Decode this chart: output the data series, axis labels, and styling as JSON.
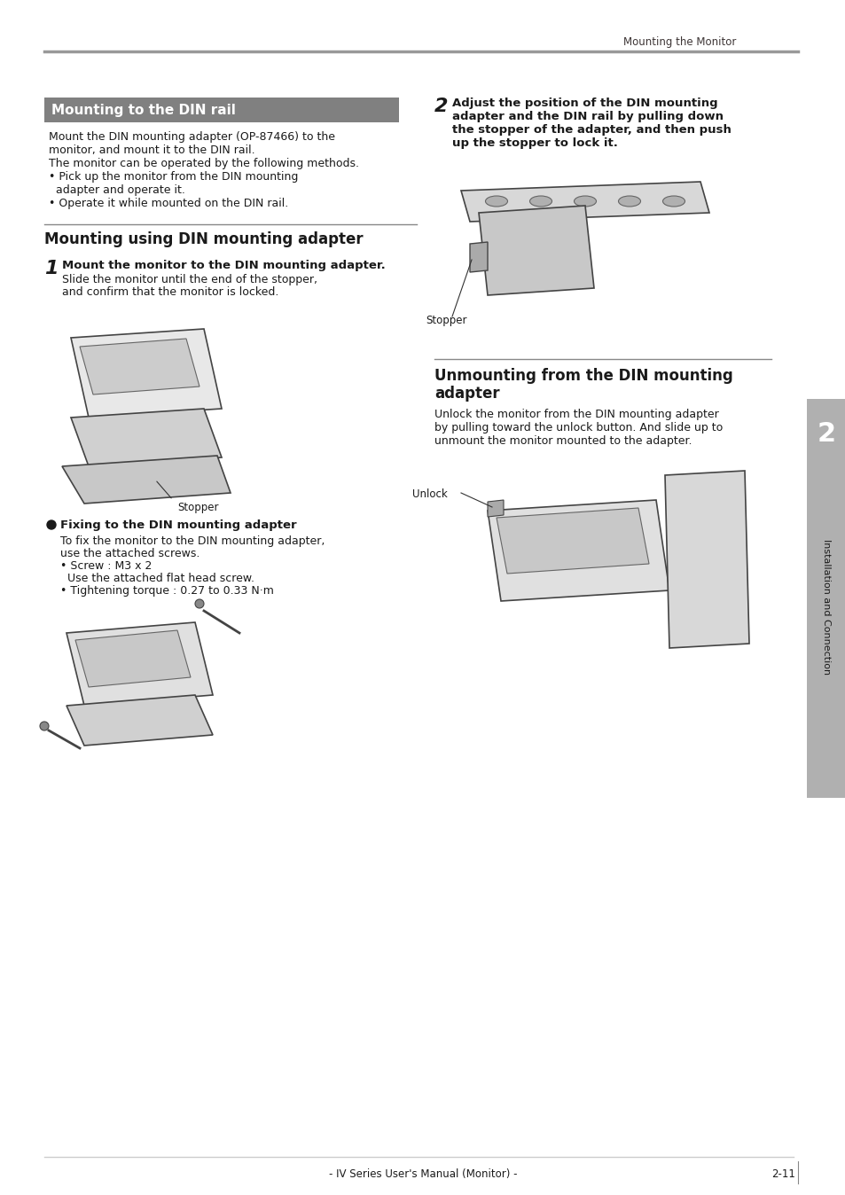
{
  "page_bg": "#ffffff",
  "header_text": "Mounting the Monitor",
  "header_text_color": "#3d3535",
  "header_line_color": "#999999",
  "section1_title": "Mounting to the DIN rail",
  "section1_title_bg": "#808080",
  "section1_title_color": "#ffffff",
  "section1_body": [
    "Mount the DIN mounting adapter (OP-87466) to the",
    "monitor, and mount it to the DIN rail.",
    "The monitor can be operated by the following methods.",
    "• Pick up the monitor from the DIN mounting",
    "  adapter and operate it.",
    "• Operate it while mounted on the DIN rail."
  ],
  "section2_title": "Mounting using DIN mounting adapter",
  "section2_line_color": "#555555",
  "step1_title": "Mount the monitor to the DIN mounting adapter.",
  "step1_body": [
    "Slide the monitor until the end of the stopper,",
    "and confirm that the monitor is locked."
  ],
  "step1_label": "Stopper",
  "step2_number": "2",
  "step2_title": "Adjust the position of the DIN mounting adapter and the DIN rail by pulling down the stopper of the adapter, and then push up the stopper to lock it.",
  "step2_label": "Stopper",
  "fixing_title": "Fixing to the DIN mounting adapter",
  "fixing_body": [
    "To fix the monitor to the DIN mounting adapter,",
    "use the attached screws.",
    "• Screw : M3 x 2",
    "  Use the attached flat head screw.",
    "• Tightening torque : 0.27 to 0.33 N·m"
  ],
  "section3_title": "Unmounting from the DIN mounting adapter",
  "section3_line_color": "#555555",
  "section3_body": [
    "Unlock the monitor from the DIN mounting adapter",
    "by pulling toward the unlock button. And slide up to",
    "unmount the monitor mounted to the adapter."
  ],
  "section3_label": "Unlock",
  "sidebar_text": "Installation and Connection",
  "sidebar_number": "2",
  "sidebar_bg": "#d0d0d0",
  "footer_center": "- IV Series User's Manual (Monitor) -",
  "footer_right": "2-11",
  "footer_line_color": "#cccccc",
  "text_color": "#1a1a1a",
  "body_fontsize": 9,
  "title_fontsize": 11,
  "step_num_fontsize": 16
}
